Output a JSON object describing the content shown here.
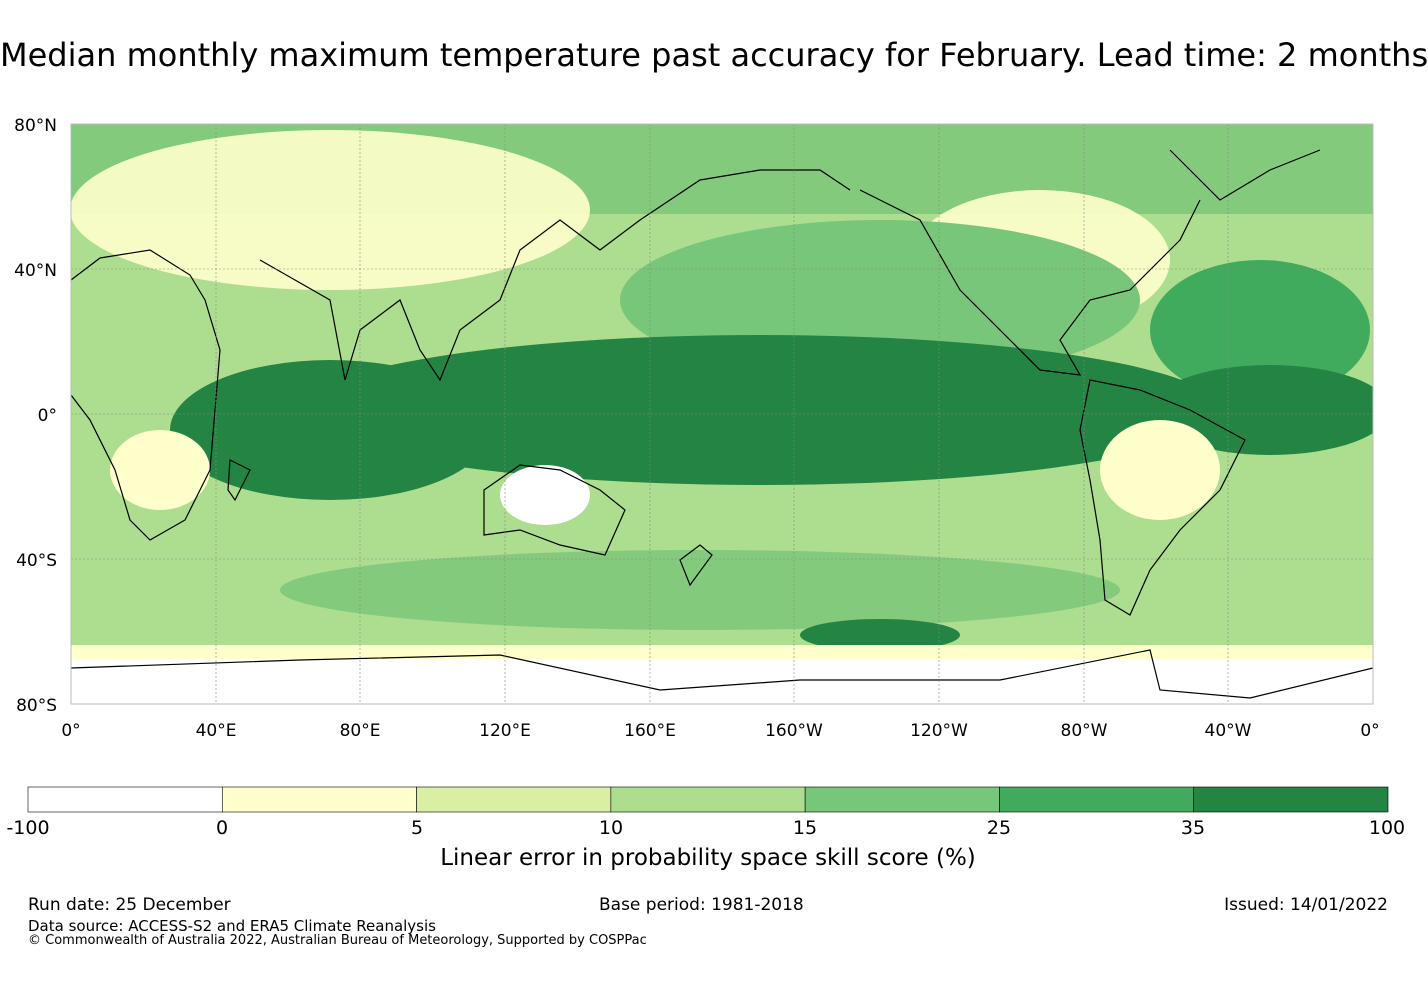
{
  "title": "Median monthly maximum temperature past accuracy for February. Lead time: 2 months",
  "map": {
    "lat_labels": [
      "80°N",
      "40°N",
      "0°",
      "40°S",
      "80°S"
    ],
    "lon_labels": [
      "0°",
      "40°E",
      "80°E",
      "120°E",
      "160°E",
      "160°W",
      "120°W",
      "80°W",
      "40°W",
      "0°"
    ]
  },
  "colorbar": {
    "ticks": [
      "-100",
      "0",
      "5",
      "10",
      "15",
      "25",
      "35",
      "100"
    ],
    "colors": [
      "#ffffff",
      "#ffffcc",
      "#d9f0a3",
      "#addd8e",
      "#78c679",
      "#41ab5d",
      "#238443"
    ],
    "label": "Linear error in probability space skill score (%)"
  },
  "footer": {
    "run_date": "Run date: 25 December",
    "base_period": "Base period: 1981-2018",
    "issued": "Issued: 14/01/2022",
    "data_source": "Data source: ACCESS-S2 and ERA5 Climate Reanalysis",
    "copyright": "© Commonwealth of Australia 2022, Australian Bureau of Meteorology, Supported by COSPPac"
  }
}
